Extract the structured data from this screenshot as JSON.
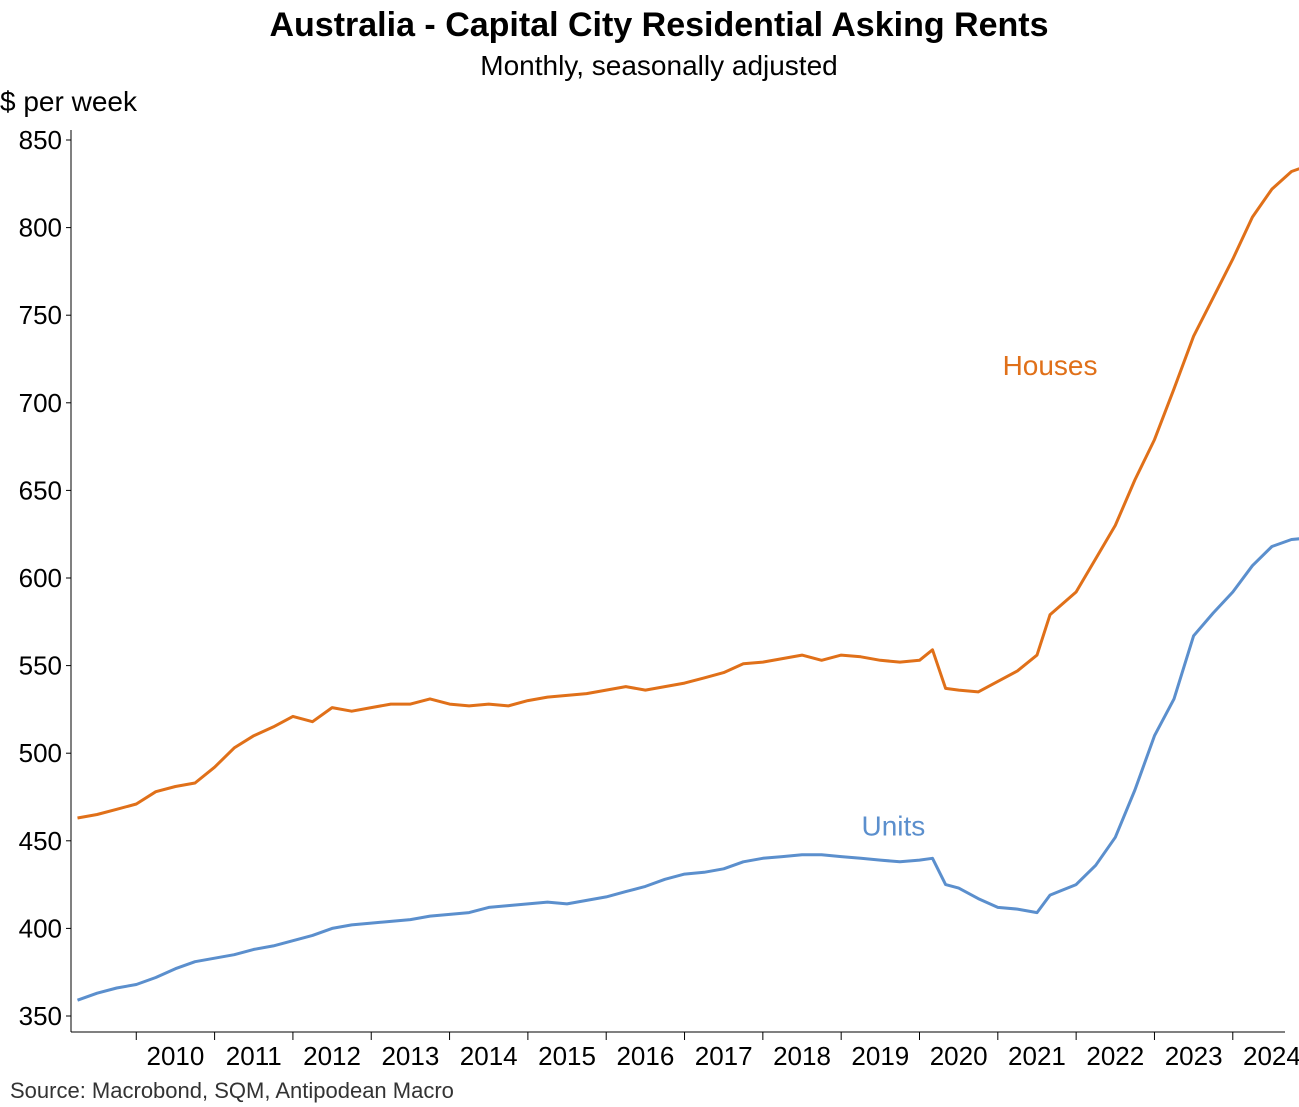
{
  "chart_data": {
    "type": "line",
    "title": "Australia - Capital City Residential Asking Rents",
    "subtitle": "Monthly, seasonally adjusted",
    "ylabel": "$ per week",
    "xlabel": "",
    "source": "Source: Macrobond, SQM, Antipodean Macro",
    "ylim": [
      350,
      850
    ],
    "yticks": [
      350,
      400,
      450,
      500,
      550,
      600,
      650,
      700,
      750,
      800,
      850
    ],
    "xlim": [
      "2009-03",
      "2024-09"
    ],
    "xticks": [
      "2010",
      "2011",
      "2012",
      "2013",
      "2014",
      "2015",
      "2016",
      "2017",
      "2018",
      "2019",
      "2020",
      "2021",
      "2022",
      "2023",
      "2024"
    ],
    "grid": false,
    "legend": "inline labels",
    "series": [
      {
        "name": "Houses",
        "color": "#E07019",
        "label_position": {
          "x": "2021-09",
          "y": 716
        },
        "points": [
          [
            "2009-04",
            463
          ],
          [
            "2009-07",
            465
          ],
          [
            "2009-10",
            468
          ],
          [
            "2010-01",
            471
          ],
          [
            "2010-04",
            478
          ],
          [
            "2010-07",
            481
          ],
          [
            "2010-10",
            483
          ],
          [
            "2011-01",
            492
          ],
          [
            "2011-04",
            503
          ],
          [
            "2011-07",
            510
          ],
          [
            "2011-10",
            515
          ],
          [
            "2012-01",
            521
          ],
          [
            "2012-04",
            518
          ],
          [
            "2012-07",
            526
          ],
          [
            "2012-10",
            524
          ],
          [
            "2013-01",
            526
          ],
          [
            "2013-04",
            528
          ],
          [
            "2013-07",
            528
          ],
          [
            "2013-10",
            531
          ],
          [
            "2014-01",
            528
          ],
          [
            "2014-04",
            527
          ],
          [
            "2014-07",
            528
          ],
          [
            "2014-10",
            527
          ],
          [
            "2015-01",
            530
          ],
          [
            "2015-04",
            532
          ],
          [
            "2015-07",
            533
          ],
          [
            "2015-10",
            534
          ],
          [
            "2016-01",
            536
          ],
          [
            "2016-04",
            538
          ],
          [
            "2016-07",
            536
          ],
          [
            "2016-10",
            538
          ],
          [
            "2017-01",
            540
          ],
          [
            "2017-04",
            543
          ],
          [
            "2017-07",
            546
          ],
          [
            "2017-10",
            551
          ],
          [
            "2018-01",
            552
          ],
          [
            "2018-04",
            554
          ],
          [
            "2018-07",
            556
          ],
          [
            "2018-10",
            553
          ],
          [
            "2019-01",
            556
          ],
          [
            "2019-04",
            555
          ],
          [
            "2019-07",
            553
          ],
          [
            "2019-10",
            552
          ],
          [
            "2020-01",
            553
          ],
          [
            "2020-03",
            559
          ],
          [
            "2020-05",
            537
          ],
          [
            "2020-07",
            536
          ],
          [
            "2020-10",
            535
          ],
          [
            "2021-01",
            541
          ],
          [
            "2021-04",
            547
          ],
          [
            "2021-07",
            556
          ],
          [
            "2021-09",
            579
          ],
          [
            "2022-01",
            592
          ],
          [
            "2022-04",
            611
          ],
          [
            "2022-07",
            630
          ],
          [
            "2022-10",
            656
          ],
          [
            "2023-01",
            679
          ],
          [
            "2023-04",
            708
          ],
          [
            "2023-07",
            738
          ],
          [
            "2023-10",
            760
          ],
          [
            "2024-01",
            782
          ],
          [
            "2024-04",
            806
          ],
          [
            "2024-07",
            822
          ],
          [
            "2024-10",
            832
          ],
          [
            "2025-01",
            836
          ]
        ]
      },
      {
        "name": "Units",
        "color": "#5B8FCD",
        "label_position": {
          "x": "2019-09",
          "y": 453
        },
        "points": [
          [
            "2009-04",
            359
          ],
          [
            "2009-07",
            363
          ],
          [
            "2009-10",
            366
          ],
          [
            "2010-01",
            368
          ],
          [
            "2010-04",
            372
          ],
          [
            "2010-07",
            377
          ],
          [
            "2010-10",
            381
          ],
          [
            "2011-01",
            383
          ],
          [
            "2011-04",
            385
          ],
          [
            "2011-07",
            388
          ],
          [
            "2011-10",
            390
          ],
          [
            "2012-01",
            393
          ],
          [
            "2012-04",
            396
          ],
          [
            "2012-07",
            400
          ],
          [
            "2012-10",
            402
          ],
          [
            "2013-01",
            403
          ],
          [
            "2013-04",
            404
          ],
          [
            "2013-07",
            405
          ],
          [
            "2013-10",
            407
          ],
          [
            "2014-01",
            408
          ],
          [
            "2014-04",
            409
          ],
          [
            "2014-07",
            412
          ],
          [
            "2014-10",
            413
          ],
          [
            "2015-01",
            414
          ],
          [
            "2015-04",
            415
          ],
          [
            "2015-07",
            414
          ],
          [
            "2015-10",
            416
          ],
          [
            "2016-01",
            418
          ],
          [
            "2016-04",
            421
          ],
          [
            "2016-07",
            424
          ],
          [
            "2016-10",
            428
          ],
          [
            "2017-01",
            431
          ],
          [
            "2017-04",
            432
          ],
          [
            "2017-07",
            434
          ],
          [
            "2017-10",
            438
          ],
          [
            "2018-01",
            440
          ],
          [
            "2018-04",
            441
          ],
          [
            "2018-07",
            442
          ],
          [
            "2018-10",
            442
          ],
          [
            "2019-01",
            441
          ],
          [
            "2019-04",
            440
          ],
          [
            "2019-07",
            439
          ],
          [
            "2019-10",
            438
          ],
          [
            "2020-01",
            439
          ],
          [
            "2020-03",
            440
          ],
          [
            "2020-05",
            425
          ],
          [
            "2020-07",
            423
          ],
          [
            "2020-10",
            417
          ],
          [
            "2021-01",
            412
          ],
          [
            "2021-04",
            411
          ],
          [
            "2021-07",
            409
          ],
          [
            "2021-09",
            419
          ],
          [
            "2022-01",
            425
          ],
          [
            "2022-04",
            436
          ],
          [
            "2022-07",
            452
          ],
          [
            "2022-10",
            479
          ],
          [
            "2023-01",
            510
          ],
          [
            "2023-04",
            531
          ],
          [
            "2023-07",
            567
          ],
          [
            "2023-10",
            580
          ],
          [
            "2024-01",
            592
          ],
          [
            "2024-04",
            607
          ],
          [
            "2024-07",
            618
          ],
          [
            "2024-10",
            622
          ],
          [
            "2025-01",
            623
          ]
        ]
      }
    ]
  }
}
